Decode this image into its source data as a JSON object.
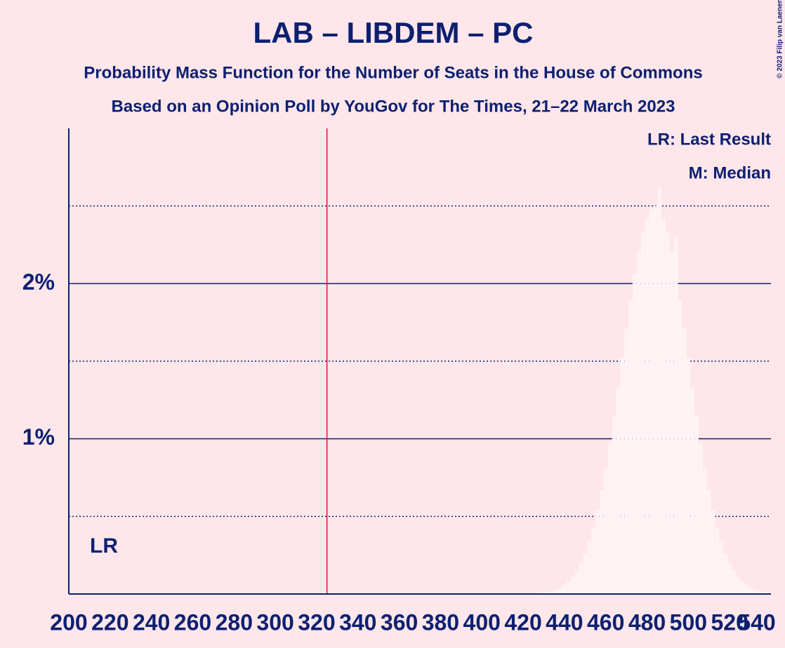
{
  "chart_data": {
    "type": "bar",
    "title": "LAB – LIBDEM – PC",
    "subtitle": "Probability Mass Function for the Number of Seats in the House of Commons",
    "subtitle2": "Based on an Opinion Poll by YouGov for The Times, 21–22 March 2023",
    "copyright": "© 2023 Filip van Laenen",
    "legend": [
      "LR: Last Result",
      "M: Median"
    ],
    "x": [
      428,
      430,
      432,
      434,
      436,
      438,
      440,
      442,
      444,
      446,
      448,
      450,
      452,
      454,
      456,
      458,
      460,
      462,
      464,
      466,
      468,
      470,
      472,
      474,
      476,
      478,
      480,
      482,
      484,
      486,
      488,
      490,
      492,
      494,
      496,
      498,
      500,
      502,
      504,
      506,
      508,
      510,
      512,
      514,
      516,
      518,
      520,
      522,
      524,
      526,
      528,
      530,
      532,
      534,
      536,
      538,
      540
    ],
    "values": [
      0.01,
      0.01,
      0.01,
      0.02,
      0.03,
      0.04,
      0.06,
      0.08,
      0.11,
      0.15,
      0.2,
      0.26,
      0.34,
      0.43,
      0.54,
      0.67,
      0.81,
      0.97,
      1.15,
      1.33,
      1.52,
      1.71,
      1.89,
      2.06,
      2.21,
      2.33,
      2.42,
      2.48,
      2.5,
      2.62,
      2.42,
      2.33,
      2.21,
      2.3,
      1.89,
      1.71,
      1.52,
      1.33,
      1.15,
      0.97,
      0.81,
      0.67,
      0.54,
      0.43,
      0.34,
      0.26,
      0.2,
      0.15,
      0.11,
      0.08,
      0.06,
      0.04,
      0.03,
      0.02,
      0.01,
      0.01,
      0.01
    ],
    "color": "#fff3f5",
    "majority": 325,
    "majority_color": "#e0103a",
    "last_result": {
      "value": 217,
      "label": "LR"
    },
    "xlim": [
      200,
      540
    ],
    "xticks": [
      200,
      220,
      240,
      260,
      280,
      300,
      320,
      340,
      360,
      380,
      400,
      420,
      440,
      460,
      480,
      500,
      520,
      540
    ],
    "ylim": [
      0,
      3
    ],
    "yticks": [
      {
        "value": 1,
        "label": "1%"
      },
      {
        "value": 2,
        "label": "2%"
      }
    ],
    "minor_yticks": [
      0.5,
      1.5,
      2.5
    ],
    "grid": true
  }
}
